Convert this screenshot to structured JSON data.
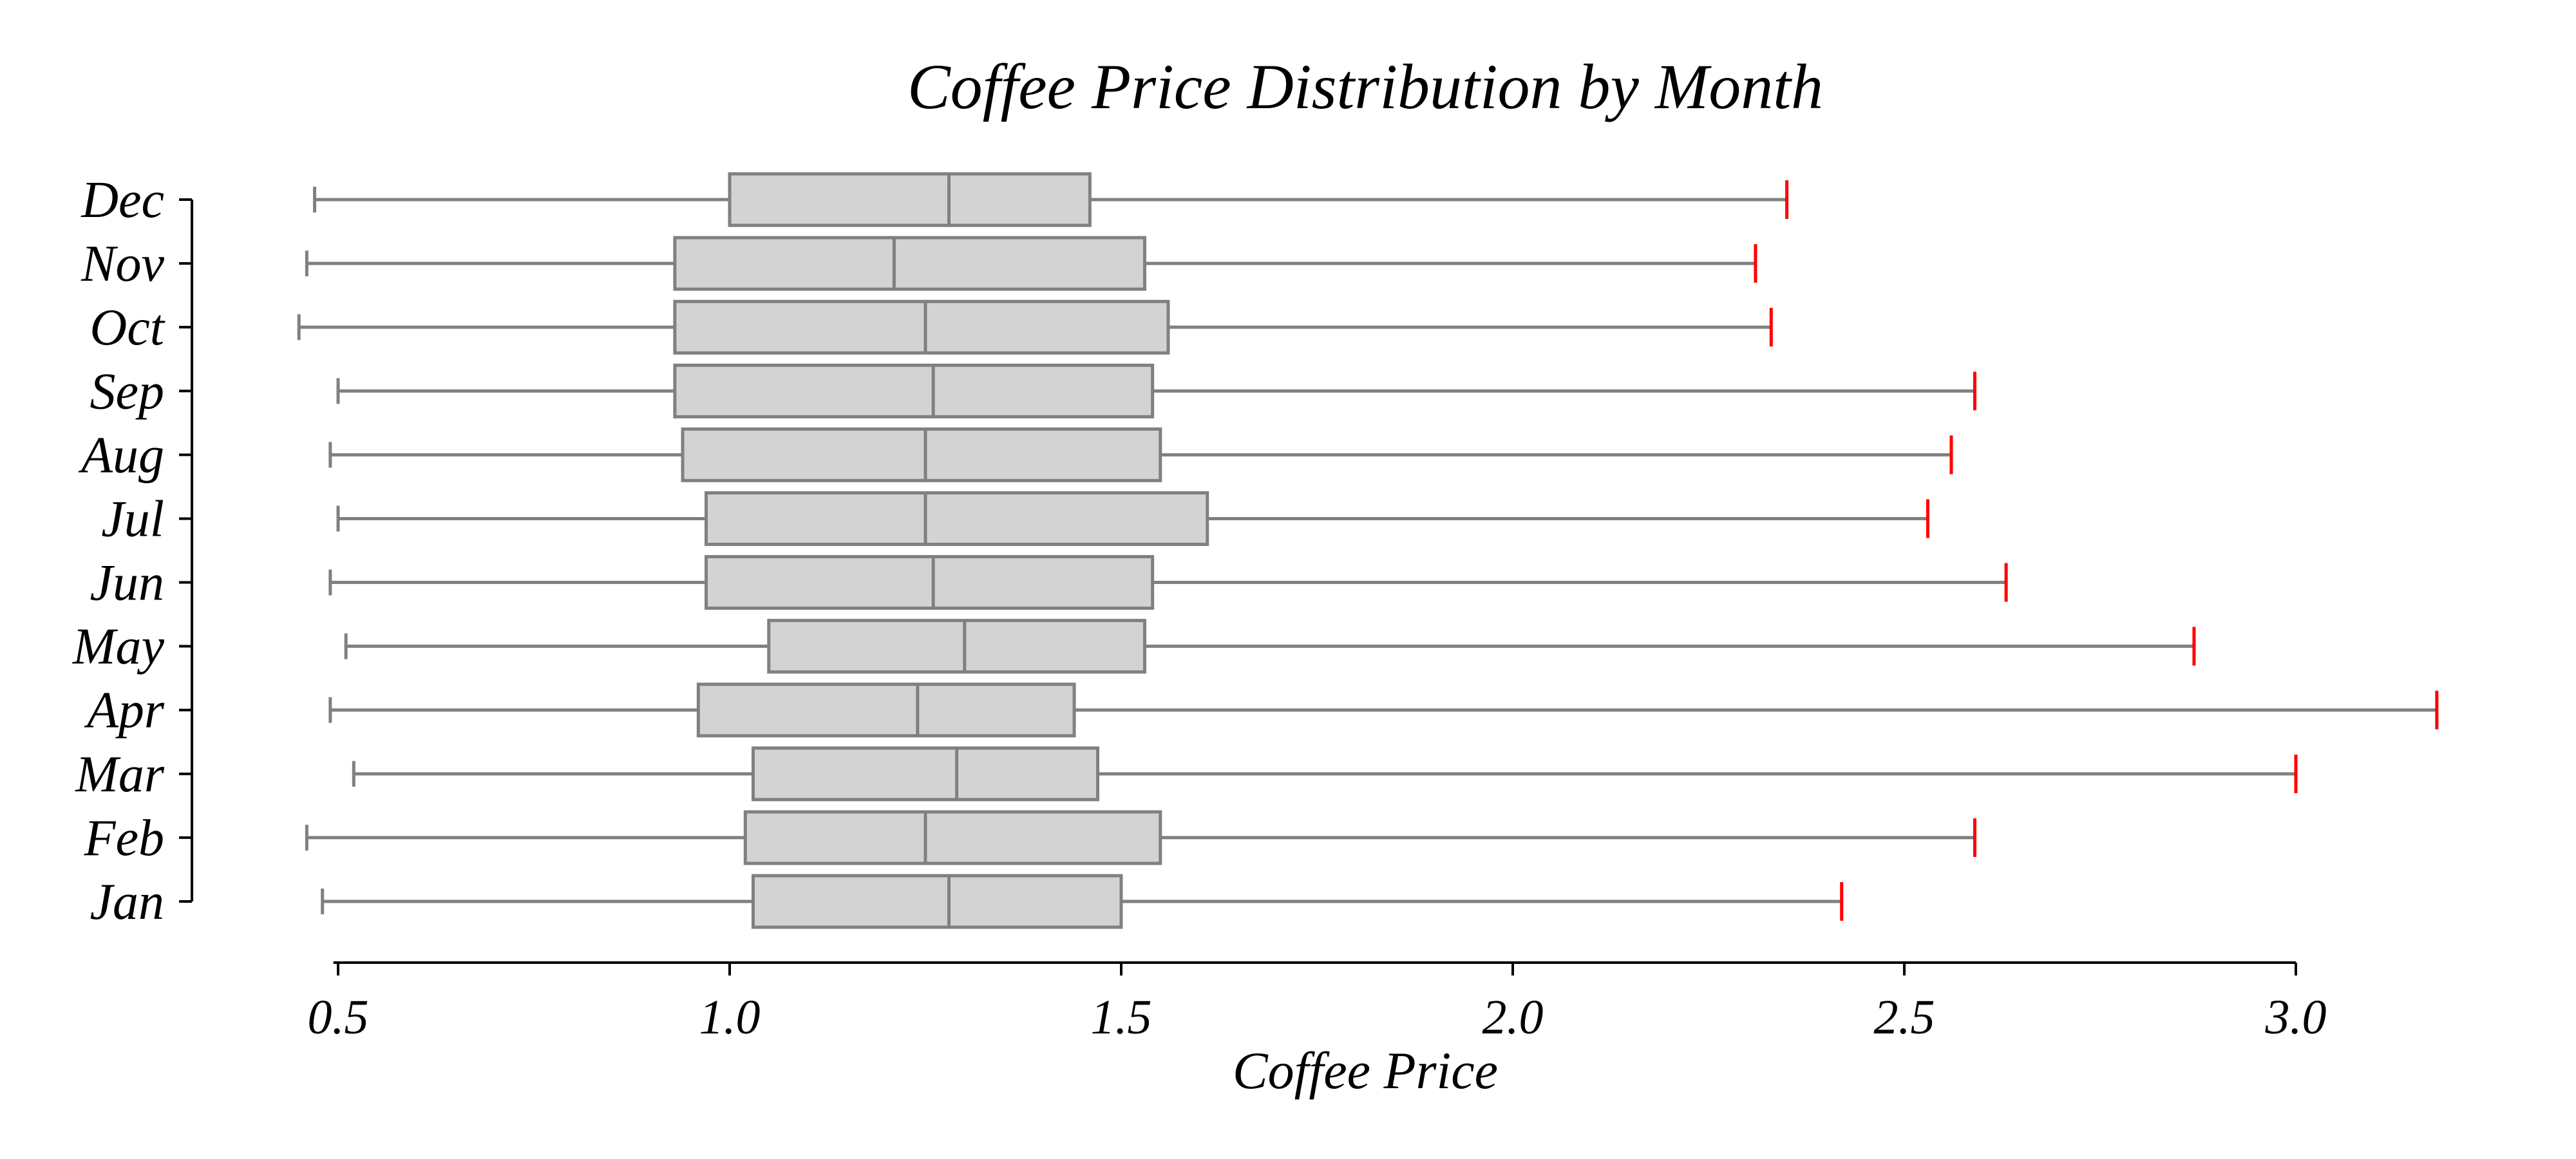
{
  "chart_data": {
    "type": "boxplot",
    "orientation": "horizontal",
    "title": "Coffee Price Distribution by Month",
    "xlabel": "Coffee Price",
    "ylabel": "",
    "xlim": [
      0.42,
      3.28
    ],
    "xticks": [
      0.5,
      1.0,
      1.5,
      2.0,
      2.5,
      3.0
    ],
    "xtick_labels": [
      "0.5",
      "1.0",
      "1.5",
      "2.0",
      "2.5",
      "3.0"
    ],
    "grid": false,
    "colors": {
      "box_fill": "#d3d3d3",
      "box_edge": "#808080",
      "max_cap": "#ff0000",
      "axis": "#000000"
    },
    "categories": [
      "Jan",
      "Feb",
      "Mar",
      "Apr",
      "May",
      "Jun",
      "Jul",
      "Aug",
      "Sep",
      "Oct",
      "Nov",
      "Dec"
    ],
    "boxes": [
      {
        "label": "Jan",
        "min": 0.48,
        "q1": 1.03,
        "median": 1.28,
        "q3": 1.5,
        "max": 2.42
      },
      {
        "label": "Feb",
        "min": 0.46,
        "q1": 1.02,
        "median": 1.25,
        "q3": 1.55,
        "max": 2.59
      },
      {
        "label": "Mar",
        "min": 0.52,
        "q1": 1.03,
        "median": 1.29,
        "q3": 1.47,
        "max": 3.0
      },
      {
        "label": "Apr",
        "min": 0.49,
        "q1": 0.96,
        "median": 1.24,
        "q3": 1.44,
        "max": 3.18
      },
      {
        "label": "May",
        "min": 0.51,
        "q1": 1.05,
        "median": 1.3,
        "q3": 1.53,
        "max": 2.87
      },
      {
        "label": "Jun",
        "min": 0.49,
        "q1": 0.97,
        "median": 1.26,
        "q3": 1.54,
        "max": 2.63
      },
      {
        "label": "Jul",
        "min": 0.5,
        "q1": 0.97,
        "median": 1.25,
        "q3": 1.61,
        "max": 2.53
      },
      {
        "label": "Aug",
        "min": 0.49,
        "q1": 0.94,
        "median": 1.25,
        "q3": 1.55,
        "max": 2.56
      },
      {
        "label": "Sep",
        "min": 0.5,
        "q1": 0.93,
        "median": 1.26,
        "q3": 1.54,
        "max": 2.59
      },
      {
        "label": "Oct",
        "min": 0.45,
        "q1": 0.93,
        "median": 1.25,
        "q3": 1.56,
        "max": 2.33
      },
      {
        "label": "Nov",
        "min": 0.46,
        "q1": 0.93,
        "median": 1.21,
        "q3": 1.53,
        "max": 2.31
      },
      {
        "label": "Dec",
        "min": 0.47,
        "q1": 1.0,
        "median": 1.28,
        "q3": 1.46,
        "max": 2.35
      }
    ]
  }
}
